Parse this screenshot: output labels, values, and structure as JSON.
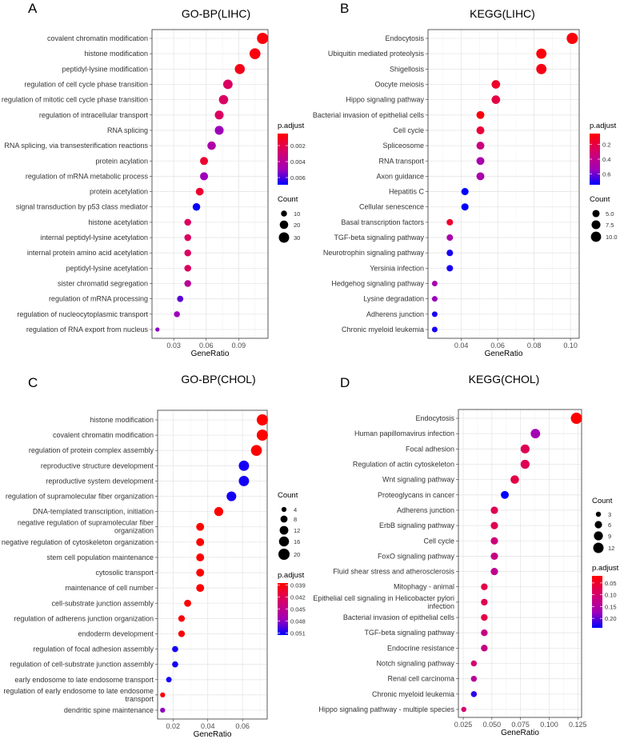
{
  "chart_data": [
    {
      "panel": "A",
      "type": "scatter",
      "title": "GO-BP(LIHC)",
      "xlabel": "GeneRatio",
      "ylabel": "",
      "xlim": [
        0.01,
        0.117
      ],
      "xticks": [
        0.03,
        0.06,
        0.09
      ],
      "xtick_labels": [
        "0.03",
        "0.06",
        "0.09"
      ],
      "grid": true,
      "legend_order": "color-first",
      "color_legend": {
        "title": "p.adjust",
        "limits": [
          0.0005,
          0.0069
        ],
        "ticks": [
          0.002,
          0.004,
          0.006
        ],
        "tick_labels": [
          "0.002",
          "0.004",
          "0.006"
        ],
        "low_color": "#FF0000",
        "high_color": "#0000FF"
      },
      "size_legend": {
        "title": "Count",
        "values": [
          10,
          20,
          30
        ],
        "labels": [
          "10",
          "20",
          "30"
        ]
      },
      "terms": [
        "covalent chromatin modification",
        "histone modification",
        "peptidyl-lysine modification",
        "regulation of cell cycle phase transition",
        "regulation of mitotic cell cycle phase transition",
        "regulation of intracellular transport",
        "RNA splicing",
        "RNA splicing, via transesterification reactions",
        "protein acylation",
        "regulation of mRNA metabolic process",
        "protein acetylation",
        "signal transduction by p53 class mediator",
        "histone acetylation",
        "internal peptidyl-lysine acetylation",
        "internal protein amino acid acetylation",
        "peptidyl-lysine acetylation",
        "sister chromatid segregation",
        "regulation of mRNA processing",
        "regulation of nucleocytoplasmic transport",
        "regulation of RNA export from nucleus"
      ],
      "gene_ratio": [
        0.112,
        0.105,
        0.091,
        0.08,
        0.076,
        0.072,
        0.072,
        0.065,
        0.058,
        0.058,
        0.054,
        0.051,
        0.043,
        0.043,
        0.043,
        0.043,
        0.043,
        0.036,
        0.033,
        0.015
      ],
      "count": [
        35,
        33,
        28,
        25,
        24,
        22,
        22,
        20,
        18,
        18,
        17,
        16,
        13,
        13,
        13,
        13,
        13,
        11,
        10,
        5
      ],
      "p_adjust": [
        0.0008,
        0.0008,
        0.001,
        0.0025,
        0.0025,
        0.0025,
        0.005,
        0.0045,
        0.0015,
        0.005,
        0.0015,
        0.0068,
        0.0025,
        0.0025,
        0.0025,
        0.0025,
        0.004,
        0.0058,
        0.005,
        0.0052
      ]
    },
    {
      "panel": "B",
      "type": "scatter",
      "title": "KEGG(LIHC)",
      "xlabel": "GeneRatio",
      "ylabel": "",
      "xlim": [
        0.0217,
        0.1048
      ],
      "xticks": [
        0.04,
        0.06,
        0.08,
        0.1
      ],
      "xtick_labels": [
        "0.04",
        "0.06",
        "0.08",
        "0.10"
      ],
      "grid": true,
      "legend_order": "color-first",
      "color_legend": {
        "title": "p.adjust",
        "limits": [
          0.05,
          0.75
        ],
        "ticks": [
          0.2,
          0.4,
          0.6
        ],
        "tick_labels": [
          "0.2",
          "0.4",
          "0.6"
        ],
        "low_color": "#FF0000",
        "high_color": "#0000FF"
      },
      "size_legend": {
        "title": "Count",
        "values": [
          5,
          7.5,
          10
        ],
        "labels": [
          "5.0",
          "7.5",
          "10.0"
        ]
      },
      "terms": [
        "Endocytosis",
        "Ubiquitin mediated proteolysis",
        "Shigellosis",
        "Oocyte meiosis",
        "Hippo signaling pathway",
        "Bacterial invasion of epithelial cells",
        "Cell cycle",
        "Spliceosome",
        "RNA transport",
        "Axon guidance",
        "Hepatitis C",
        "Cellular senescence",
        "Basal transcription factors",
        "TGF-beta signaling pathway",
        "Neurotrophin signaling pathway",
        "Yersinia infection",
        "Hedgehog signaling pathway",
        "Lysine degradation",
        "Adherens junction",
        "Chronic myeloid leukemia"
      ],
      "gene_ratio": [
        0.101,
        0.084,
        0.084,
        0.059,
        0.059,
        0.0505,
        0.0505,
        0.0505,
        0.0505,
        0.0505,
        0.042,
        0.042,
        0.0337,
        0.0337,
        0.0337,
        0.0337,
        0.0254,
        0.0254,
        0.0254,
        0.0254
      ],
      "count": [
        12,
        10,
        10,
        7,
        7,
        6,
        6,
        6,
        6,
        6,
        5,
        5,
        4,
        4,
        4,
        4,
        3,
        3,
        3,
        3
      ],
      "p_adjust": [
        0.08,
        0.08,
        0.1,
        0.15,
        0.2,
        0.08,
        0.18,
        0.35,
        0.5,
        0.5,
        0.75,
        0.75,
        0.15,
        0.5,
        0.72,
        0.72,
        0.5,
        0.55,
        0.72,
        0.72
      ]
    },
    {
      "panel": "C",
      "type": "scatter",
      "title": "GO-BP(CHOL)",
      "xlabel": "GeneRatio",
      "ylabel": "",
      "xlim": [
        0.0111,
        0.0742
      ],
      "xticks": [
        0.02,
        0.04,
        0.06
      ],
      "xtick_labels": [
        "0.02",
        "0.04",
        "0.06"
      ],
      "grid": true,
      "legend_order": "size-first",
      "color_legend": {
        "title": "p.adjust",
        "limits": [
          0.0385,
          0.0515
        ],
        "ticks": [
          0.039,
          0.042,
          0.045,
          0.048,
          0.051
        ],
        "tick_labels": [
          "0.039",
          "0.042",
          "0.045",
          "0.048",
          "0.051"
        ],
        "low_color": "#FF0000",
        "high_color": "#0000FF"
      },
      "size_legend": {
        "title": "Count",
        "values": [
          4,
          8,
          12,
          16,
          20
        ],
        "labels": [
          "4",
          "8",
          "12",
          "16",
          "20"
        ]
      },
      "terms": [
        "histone modification",
        "covalent chromatin modification",
        "regulation of protein complex assembly",
        "reproductive structure development",
        "reproductive system development",
        "regulation of supramolecular fiber organization",
        "DNA-templated transcription, initiation",
        "negative regulation of supramolecular fiber\norganization",
        "negative regulation of cytoskeleton organization",
        "stem cell population maintenance",
        "cytosolic transport",
        "maintenance of cell number",
        "cell-substrate junction assembly",
        "regulation of adherens junction organization",
        "endoderm development",
        "regulation of focal adhesion assembly",
        "regulation of cell-substrate junction assembly",
        "early endosome to late endosome transport",
        "regulation of early endosome to late endosome\ntransport",
        "dendritic spine maintenance"
      ],
      "gene_ratio": [
        0.0714,
        0.0714,
        0.068,
        0.0608,
        0.0608,
        0.0536,
        0.0463,
        0.0356,
        0.0356,
        0.0356,
        0.0356,
        0.0356,
        0.0284,
        0.0249,
        0.0249,
        0.0212,
        0.0212,
        0.0176,
        0.014,
        0.014
      ],
      "count": [
        20,
        20,
        19,
        17,
        17,
        15,
        13,
        10,
        10,
        10,
        10,
        10,
        8,
        7,
        7,
        6,
        6,
        5,
        4,
        4
      ],
      "p_adjust": [
        0.0385,
        0.0385,
        0.0385,
        0.051,
        0.051,
        0.051,
        0.0385,
        0.0385,
        0.0385,
        0.0385,
        0.0385,
        0.0385,
        0.0385,
        0.0388,
        0.0388,
        0.051,
        0.051,
        0.051,
        0.0388,
        0.048
      ]
    },
    {
      "panel": "D",
      "type": "scatter",
      "title": "KEGG(CHOL)",
      "xlabel": "GeneRatio",
      "ylabel": "",
      "xlim": [
        0.0208,
        0.1283
      ],
      "xticks": [
        0.025,
        0.05,
        0.075,
        0.1,
        0.125
      ],
      "xtick_labels": [
        "0.025",
        "0.050",
        "0.075",
        "0.100",
        "0.125"
      ],
      "grid": true,
      "legend_order": "size-first",
      "color_legend": {
        "title": "p.adjust",
        "limits": [
          0.02,
          0.24
        ],
        "ticks": [
          0.05,
          0.1,
          0.15,
          0.2
        ],
        "tick_labels": [
          "0.05",
          "0.10",
          "0.15",
          "0.20"
        ],
        "low_color": "#FF0000",
        "high_color": "#0000FF"
      },
      "size_legend": {
        "title": "Count",
        "values": [
          3,
          6,
          9,
          12
        ],
        "labels": [
          "3",
          "6",
          "9",
          "12"
        ]
      },
      "terms": [
        "Endocytosis",
        "Human papillomavirus infection",
        "Focal adhesion",
        "Regulation of actin cytoskeleton",
        "Wnt signaling pathway",
        "Proteoglycans in cancer",
        "Adherens junction",
        "ErbB signaling pathway",
        "Cell cycle",
        "FoxO signaling pathway",
        "Fluid shear stress and atherosclerosis",
        "Mitophagy - animal",
        "Epithelial cell signaling in Helicobacter pylori\ninfection",
        "Bacterial invasion of epithelial cells",
        "TGF-beta signaling pathway",
        "Endocrine resistance",
        "Notch signaling pathway",
        "Renal cell carcinoma",
        "Chronic myeloid leukemia",
        "Hippo signaling pathway - multiple species"
      ],
      "gene_ratio": [
        0.1238,
        0.088,
        0.079,
        0.079,
        0.07,
        0.0613,
        0.0522,
        0.0522,
        0.0522,
        0.0522,
        0.0522,
        0.0434,
        0.0434,
        0.0434,
        0.0434,
        0.0434,
        0.0343,
        0.0343,
        0.0343,
        0.0255
      ],
      "count": [
        14,
        10,
        9,
        9,
        8,
        7,
        6,
        6,
        6,
        6,
        6,
        5,
        5,
        5,
        5,
        5,
        4,
        4,
        4,
        3
      ],
      "p_adjust": [
        0.02,
        0.17,
        0.08,
        0.08,
        0.07,
        0.24,
        0.08,
        0.08,
        0.11,
        0.12,
        0.13,
        0.07,
        0.08,
        0.07,
        0.12,
        0.12,
        0.1,
        0.14,
        0.22,
        0.1
      ]
    }
  ]
}
